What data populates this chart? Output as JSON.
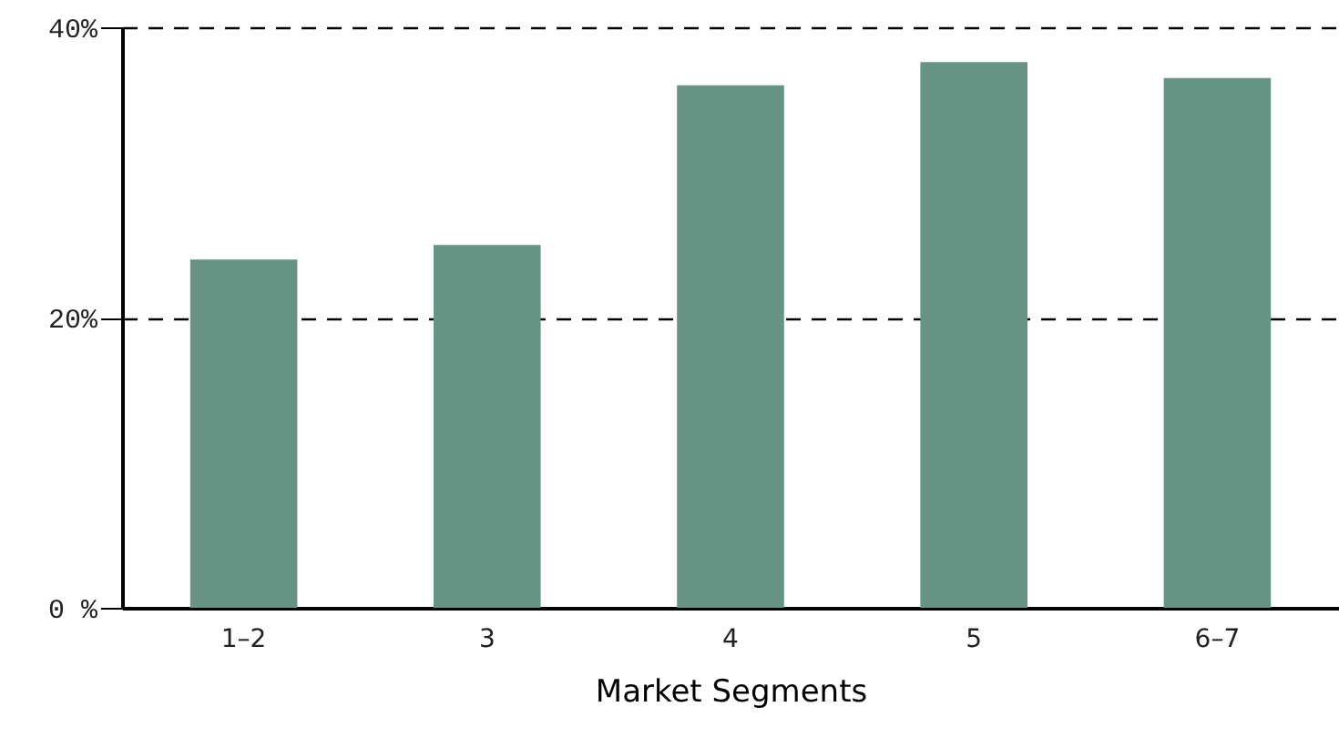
{
  "chart_data": {
    "type": "bar",
    "xlabel": "Market Segments",
    "categories": [
      "1–2",
      "3",
      "4",
      "5",
      "6–7"
    ],
    "values": [
      24,
      25,
      36,
      37.6,
      36.5
    ],
    "color": "#669384",
    "ylim": [
      0,
      40
    ],
    "yticks": [
      {
        "value": 0,
        "label": "0 %"
      },
      {
        "value": 20,
        "label": "20%"
      },
      {
        "value": 40,
        "label": "40%"
      }
    ],
    "grid": "y"
  }
}
